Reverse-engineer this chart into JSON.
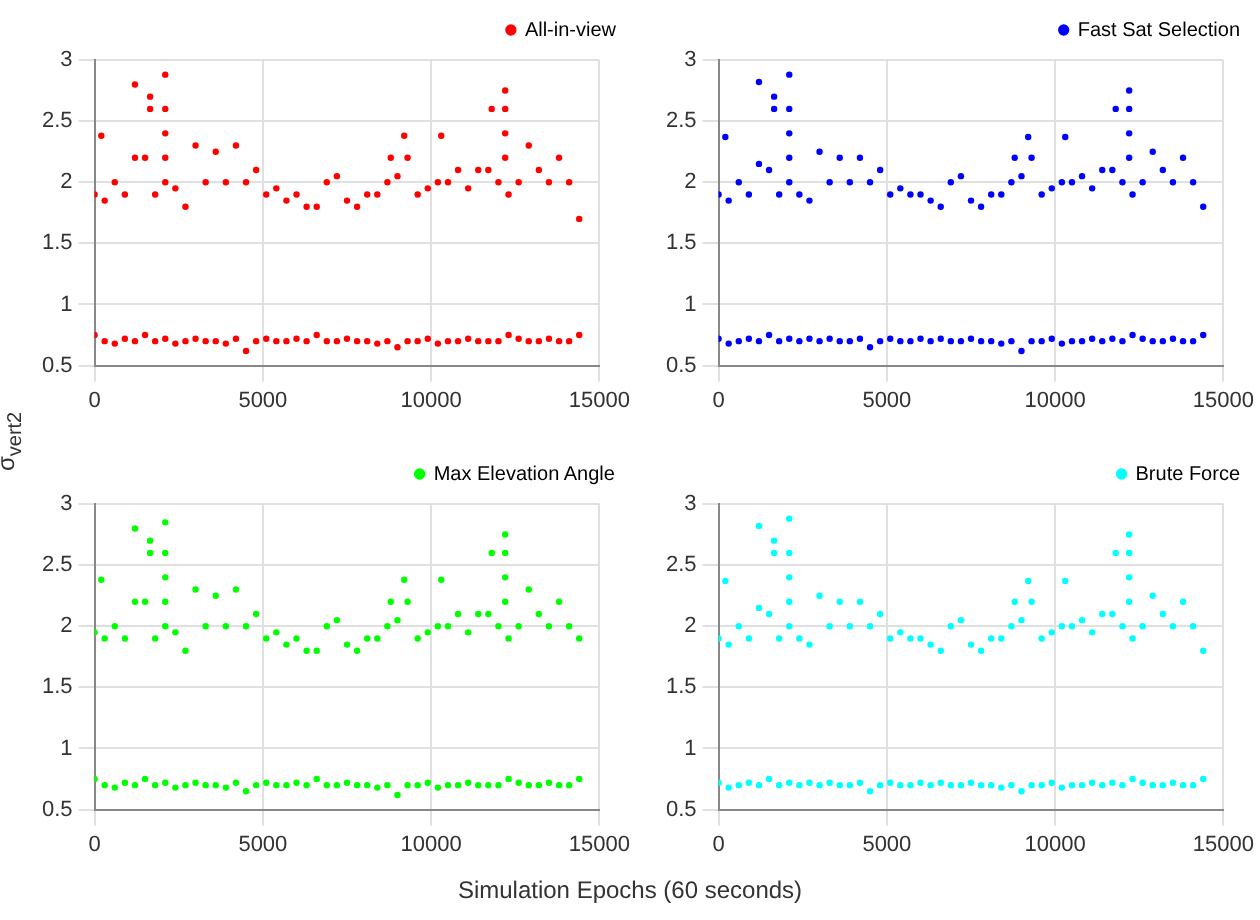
{
  "chart_data": [
    {
      "type": "scatter",
      "ylabel": "σ$_{vert2}$",
      "xlim": [
        0,
        15000
      ],
      "ylim": [
        0.5,
        3
      ],
      "xticks": [
        0,
        5000,
        10000,
        15000
      ],
      "yticks": [
        0.5,
        1,
        1.5,
        2,
        2.5,
        3
      ],
      "grid": true,
      "legend": "top right",
      "marker": "circle",
      "series": [
        {
          "name": "All-in-view",
          "color": "#ff0000",
          "x": [
            0,
            0,
            300,
            300,
            600,
            600,
            900,
            900,
            1200,
            1200,
            1500,
            1500,
            1800,
            1800,
            2100,
            2100,
            2400,
            2400,
            2700,
            2700,
            3000,
            3000,
            3300,
            3300,
            3600,
            3600,
            3900,
            3900,
            4200,
            4200,
            4500,
            4500,
            4800,
            4800,
            5100,
            5100,
            5400,
            5400,
            5700,
            5700,
            6000,
            6000,
            6300,
            6300,
            6600,
            6600,
            6900,
            6900,
            7200,
            7200,
            7500,
            7500,
            7800,
            7800,
            8100,
            8100,
            8400,
            8400,
            8700,
            8700,
            9000,
            9000,
            9300,
            9300,
            9600,
            9600,
            9900,
            9900,
            10200,
            10200,
            10500,
            10500,
            10800,
            10800,
            11100,
            11100,
            11400,
            11400,
            11700,
            11700,
            12000,
            12000,
            12300,
            12300,
            12600,
            12600,
            12900,
            12900,
            13200,
            13200,
            13500,
            13500,
            13800,
            13800,
            14100,
            14100,
            14400,
            14400,
            2100,
            2100,
            2100,
            2100,
            1200,
            1650,
            1650,
            12200,
            12200,
            12200,
            12200,
            11800,
            200,
            9200,
            10300,
            8800
          ],
          "values": [
            1.9,
            0.75,
            1.85,
            0.7,
            2.0,
            0.68,
            1.9,
            0.72,
            2.2,
            0.7,
            2.2,
            0.75,
            1.9,
            0.7,
            2.0,
            0.72,
            1.95,
            0.68,
            1.8,
            0.7,
            2.3,
            0.72,
            2.0,
            0.7,
            2.25,
            0.7,
            2.0,
            0.68,
            2.3,
            0.72,
            2.0,
            0.62,
            2.1,
            0.7,
            1.9,
            0.72,
            1.95,
            0.7,
            1.85,
            0.7,
            1.9,
            0.72,
            1.8,
            0.7,
            1.8,
            0.75,
            2.0,
            0.7,
            2.05,
            0.7,
            1.85,
            0.72,
            1.8,
            0.7,
            1.9,
            0.7,
            1.9,
            0.68,
            2.0,
            0.7,
            2.05,
            0.65,
            2.2,
            0.7,
            1.9,
            0.7,
            1.95,
            0.72,
            2.0,
            0.68,
            2.0,
            0.7,
            2.1,
            0.7,
            1.95,
            0.72,
            2.1,
            0.7,
            2.1,
            0.7,
            2.0,
            0.7,
            1.9,
            0.75,
            2.0,
            0.72,
            2.3,
            0.7,
            2.1,
            0.7,
            2.0,
            0.72,
            2.2,
            0.7,
            2.0,
            0.7,
            1.7,
            0.75,
            2.2,
            2.4,
            2.6,
            2.88,
            2.8,
            2.7,
            2.6,
            2.2,
            2.4,
            2.6,
            2.75,
            2.6,
            2.38,
            2.38,
            2.38,
            2.2
          ]
        }
      ]
    },
    {
      "type": "scatter",
      "xlim": [
        0,
        15000
      ],
      "ylim": [
        0.5,
        3
      ],
      "xticks": [
        0,
        5000,
        10000,
        15000
      ],
      "yticks": [
        0.5,
        1,
        1.5,
        2,
        2.5,
        3
      ],
      "grid": true,
      "legend": "top right",
      "marker": "circle",
      "series": [
        {
          "name": "Fast Sat Selection",
          "color": "#0000ff",
          "x": [
            0,
            0,
            300,
            300,
            600,
            600,
            900,
            900,
            1200,
            1200,
            1500,
            1500,
            1800,
            1800,
            2100,
            2100,
            2400,
            2400,
            2700,
            2700,
            3000,
            3000,
            3300,
            3300,
            3600,
            3600,
            3900,
            3900,
            4200,
            4200,
            4500,
            4500,
            4800,
            4800,
            5100,
            5100,
            5400,
            5400,
            5700,
            5700,
            6000,
            6000,
            6300,
            6300,
            6600,
            6600,
            6900,
            6900,
            7200,
            7200,
            7500,
            7500,
            7800,
            7800,
            8100,
            8100,
            8400,
            8400,
            8700,
            8700,
            9000,
            9000,
            9300,
            9300,
            9600,
            9600,
            9900,
            9900,
            10200,
            10200,
            10500,
            10500,
            10800,
            10800,
            11100,
            11100,
            11400,
            11400,
            11700,
            11700,
            12000,
            12000,
            12300,
            12300,
            12600,
            12600,
            12900,
            12900,
            13200,
            13200,
            13500,
            13500,
            13800,
            13800,
            14100,
            14100,
            14400,
            14400,
            2100,
            2100,
            2100,
            2100,
            1200,
            1650,
            1650,
            12200,
            12200,
            12200,
            12200,
            11800,
            200,
            9200,
            10300,
            8800
          ],
          "values": [
            1.9,
            0.72,
            1.85,
            0.68,
            2.0,
            0.7,
            1.9,
            0.72,
            2.15,
            0.7,
            2.1,
            0.75,
            1.9,
            0.7,
            2.0,
            0.72,
            1.9,
            0.7,
            1.85,
            0.72,
            2.25,
            0.7,
            2.0,
            0.72,
            2.2,
            0.7,
            2.0,
            0.7,
            2.2,
            0.72,
            2.0,
            0.65,
            2.1,
            0.7,
            1.9,
            0.72,
            1.95,
            0.7,
            1.9,
            0.7,
            1.9,
            0.72,
            1.85,
            0.7,
            1.8,
            0.72,
            2.0,
            0.7,
            2.05,
            0.7,
            1.85,
            0.72,
            1.8,
            0.7,
            1.9,
            0.7,
            1.9,
            0.68,
            2.0,
            0.7,
            2.05,
            0.62,
            2.2,
            0.7,
            1.9,
            0.7,
            1.95,
            0.72,
            2.0,
            0.68,
            2.0,
            0.7,
            2.05,
            0.7,
            1.95,
            0.72,
            2.1,
            0.7,
            2.1,
            0.72,
            2.0,
            0.7,
            1.9,
            0.75,
            2.0,
            0.72,
            2.25,
            0.7,
            2.1,
            0.7,
            2.0,
            0.72,
            2.2,
            0.7,
            2.0,
            0.7,
            1.8,
            0.75,
            2.2,
            2.4,
            2.6,
            2.88,
            2.82,
            2.7,
            2.6,
            2.2,
            2.4,
            2.6,
            2.75,
            2.6,
            2.37,
            2.37,
            2.37,
            2.2
          ]
        }
      ]
    },
    {
      "type": "scatter",
      "xlabel": "Simulation Epochs (60 seconds)",
      "xlim": [
        0,
        15000
      ],
      "ylim": [
        0.5,
        3
      ],
      "xticks": [
        0,
        5000,
        10000,
        15000
      ],
      "yticks": [
        0.5,
        1,
        1.5,
        2,
        2.5,
        3
      ],
      "grid": true,
      "legend": "top right",
      "marker": "circle",
      "series": [
        {
          "name": "Max Elevation Angle",
          "color": "#00ff00",
          "x": [
            0,
            0,
            300,
            300,
            600,
            600,
            900,
            900,
            1200,
            1200,
            1500,
            1500,
            1800,
            1800,
            2100,
            2100,
            2400,
            2400,
            2700,
            2700,
            3000,
            3000,
            3300,
            3300,
            3600,
            3600,
            3900,
            3900,
            4200,
            4200,
            4500,
            4500,
            4800,
            4800,
            5100,
            5100,
            5400,
            5400,
            5700,
            5700,
            6000,
            6000,
            6300,
            6300,
            6600,
            6600,
            6900,
            6900,
            7200,
            7200,
            7500,
            7500,
            7800,
            7800,
            8100,
            8100,
            8400,
            8400,
            8700,
            8700,
            9000,
            9000,
            9300,
            9300,
            9600,
            9600,
            9900,
            9900,
            10200,
            10200,
            10500,
            10500,
            10800,
            10800,
            11100,
            11100,
            11400,
            11400,
            11700,
            11700,
            12000,
            12000,
            12300,
            12300,
            12600,
            12600,
            12900,
            12900,
            13200,
            13200,
            13500,
            13500,
            13800,
            13800,
            14100,
            14100,
            14400,
            14400,
            2100,
            2100,
            2100,
            2100,
            1200,
            1650,
            1650,
            12200,
            12200,
            12200,
            12200,
            11800,
            200,
            9200,
            10300,
            8800
          ],
          "values": [
            1.95,
            0.75,
            1.9,
            0.7,
            2.0,
            0.68,
            1.9,
            0.72,
            2.2,
            0.7,
            2.2,
            0.75,
            1.9,
            0.7,
            2.0,
            0.72,
            1.95,
            0.68,
            1.8,
            0.7,
            2.3,
            0.72,
            2.0,
            0.7,
            2.25,
            0.7,
            2.0,
            0.68,
            2.3,
            0.72,
            2.0,
            0.65,
            2.1,
            0.7,
            1.9,
            0.72,
            1.95,
            0.7,
            1.85,
            0.7,
            1.9,
            0.72,
            1.8,
            0.7,
            1.8,
            0.75,
            2.0,
            0.7,
            2.05,
            0.7,
            1.85,
            0.72,
            1.8,
            0.7,
            1.9,
            0.7,
            1.9,
            0.68,
            2.0,
            0.7,
            2.05,
            0.62,
            2.2,
            0.7,
            1.9,
            0.7,
            1.95,
            0.72,
            2.0,
            0.68,
            2.0,
            0.7,
            2.1,
            0.7,
            1.95,
            0.72,
            2.1,
            0.7,
            2.1,
            0.7,
            2.0,
            0.7,
            1.9,
            0.75,
            2.0,
            0.72,
            2.3,
            0.7,
            2.1,
            0.7,
            2.0,
            0.72,
            2.2,
            0.7,
            2.0,
            0.7,
            1.9,
            0.75,
            2.2,
            2.4,
            2.6,
            2.85,
            2.8,
            2.7,
            2.6,
            2.2,
            2.4,
            2.6,
            2.75,
            2.6,
            2.38,
            2.38,
            2.38,
            2.2
          ]
        }
      ]
    },
    {
      "type": "scatter",
      "xlim": [
        0,
        15000
      ],
      "ylim": [
        0.5,
        3
      ],
      "xticks": [
        0,
        5000,
        10000,
        15000
      ],
      "yticks": [
        0.5,
        1,
        1.5,
        2,
        2.5,
        3
      ],
      "grid": true,
      "legend": "top right",
      "marker": "circle",
      "series": [
        {
          "name": "Brute Force",
          "color": "#00ffff",
          "x": [
            0,
            0,
            300,
            300,
            600,
            600,
            900,
            900,
            1200,
            1200,
            1500,
            1500,
            1800,
            1800,
            2100,
            2100,
            2400,
            2400,
            2700,
            2700,
            3000,
            3000,
            3300,
            3300,
            3600,
            3600,
            3900,
            3900,
            4200,
            4200,
            4500,
            4500,
            4800,
            4800,
            5100,
            5100,
            5400,
            5400,
            5700,
            5700,
            6000,
            6000,
            6300,
            6300,
            6600,
            6600,
            6900,
            6900,
            7200,
            7200,
            7500,
            7500,
            7800,
            7800,
            8100,
            8100,
            8400,
            8400,
            8700,
            8700,
            9000,
            9000,
            9300,
            9300,
            9600,
            9600,
            9900,
            9900,
            10200,
            10200,
            10500,
            10500,
            10800,
            10800,
            11100,
            11100,
            11400,
            11400,
            11700,
            11700,
            12000,
            12000,
            12300,
            12300,
            12600,
            12600,
            12900,
            12900,
            13200,
            13200,
            13500,
            13500,
            13800,
            13800,
            14100,
            14100,
            14400,
            14400,
            2100,
            2100,
            2100,
            2100,
            1200,
            1650,
            1650,
            12200,
            12200,
            12200,
            12200,
            11800,
            200,
            9200,
            10300,
            8800
          ],
          "values": [
            1.9,
            0.72,
            1.85,
            0.68,
            2.0,
            0.7,
            1.9,
            0.72,
            2.15,
            0.7,
            2.1,
            0.75,
            1.9,
            0.7,
            2.0,
            0.72,
            1.9,
            0.7,
            1.85,
            0.72,
            2.25,
            0.7,
            2.0,
            0.72,
            2.2,
            0.7,
            2.0,
            0.7,
            2.2,
            0.72,
            2.0,
            0.65,
            2.1,
            0.7,
            1.9,
            0.72,
            1.95,
            0.7,
            1.9,
            0.7,
            1.9,
            0.72,
            1.85,
            0.7,
            1.8,
            0.72,
            2.0,
            0.7,
            2.05,
            0.7,
            1.85,
            0.72,
            1.8,
            0.7,
            1.9,
            0.7,
            1.9,
            0.68,
            2.0,
            0.7,
            2.05,
            0.65,
            2.2,
            0.7,
            1.9,
            0.7,
            1.95,
            0.72,
            2.0,
            0.68,
            2.0,
            0.7,
            2.05,
            0.7,
            1.95,
            0.72,
            2.1,
            0.7,
            2.1,
            0.72,
            2.0,
            0.7,
            1.9,
            0.75,
            2.0,
            0.72,
            2.25,
            0.7,
            2.1,
            0.7,
            2.0,
            0.72,
            2.2,
            0.7,
            2.0,
            0.7,
            1.8,
            0.75,
            2.2,
            2.4,
            2.6,
            2.88,
            2.82,
            2.7,
            2.6,
            2.2,
            2.4,
            2.6,
            2.75,
            2.6,
            2.37,
            2.37,
            2.37,
            2.2
          ]
        }
      ]
    }
  ]
}
